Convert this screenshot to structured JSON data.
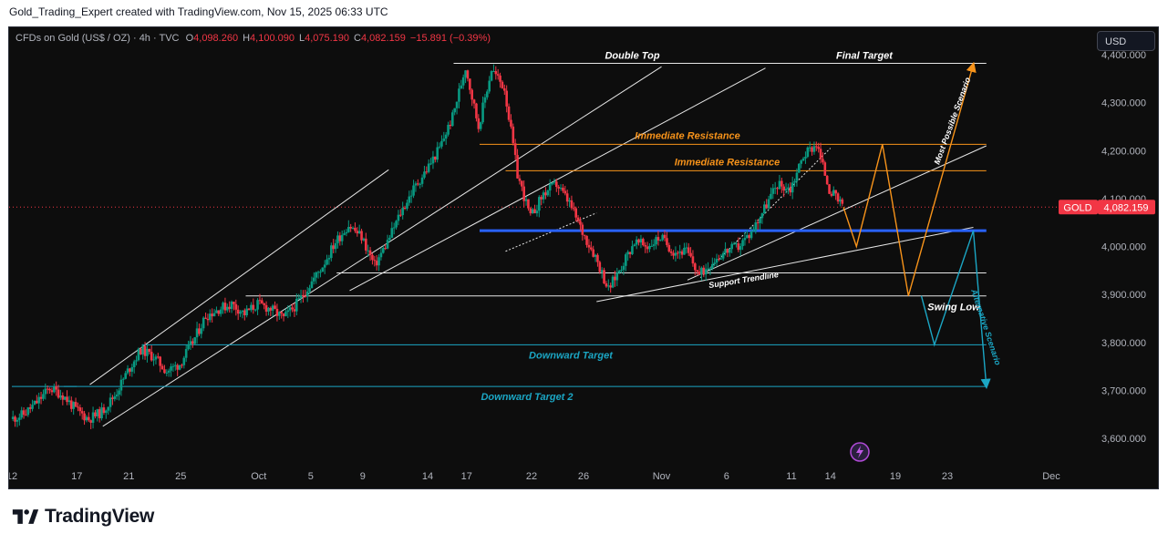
{
  "header": {
    "caption": "Gold_Trading_Expert created with TradingView.com, Nov 15, 2025 06:33 UTC"
  },
  "legend": {
    "symbol": "CFDs on Gold (US$ / OZ) · 4h · TVC",
    "open_label": "O",
    "open": "4,098.260",
    "high_label": "H",
    "high": "4,100.090",
    "low_label": "L",
    "low": "4,075.190",
    "close_label": "C",
    "close": "4,082.159",
    "change": "−15.891 (−0.39%)"
  },
  "currency_button": "USD",
  "price_tag": {
    "symbol": "GOLD",
    "price": "4,082.159"
  },
  "footer": {
    "brand": "TradingView"
  },
  "colors": {
    "up": "#089981",
    "down": "#f23645",
    "orange": "#f7931a",
    "cyan": "#1ba6c4",
    "blue": "#2962ff",
    "background": "#0d0d0d"
  },
  "chart_data": {
    "type": "candlestick",
    "title": "",
    "ylim": [
      3555,
      4405
    ],
    "y_ticks": [
      {
        "value": 3600,
        "label": "3,600.000"
      },
      {
        "value": 3700,
        "label": "3,700.000"
      },
      {
        "value": 3800,
        "label": "3,800.000"
      },
      {
        "value": 3900,
        "label": "3,900.000"
      },
      {
        "value": 4000,
        "label": "4,000.000"
      },
      {
        "value": 4100,
        "label": "4,100.000"
      },
      {
        "value": 4200,
        "label": "4,200.000"
      },
      {
        "value": 4300,
        "label": "4,300.000"
      },
      {
        "value": 4400,
        "label": "4,400.000"
      }
    ],
    "x_ticks": [
      {
        "date": "2025-09-12",
        "label": "12"
      },
      {
        "date": "2025-09-17",
        "label": "17"
      },
      {
        "date": "2025-09-21",
        "label": "21"
      },
      {
        "date": "2025-09-25",
        "label": "25"
      },
      {
        "date": "2025-10-01",
        "label": "Oct"
      },
      {
        "date": "2025-10-05",
        "label": "5"
      },
      {
        "date": "2025-10-09",
        "label": "9"
      },
      {
        "date": "2025-10-14",
        "label": "14"
      },
      {
        "date": "2025-10-17",
        "label": "17"
      },
      {
        "date": "2025-10-22",
        "label": "22"
      },
      {
        "date": "2025-10-26",
        "label": "26"
      },
      {
        "date": "2025-11-01",
        "label": "Nov"
      },
      {
        "date": "2025-11-06",
        "label": "6"
      },
      {
        "date": "2025-11-11",
        "label": "11"
      },
      {
        "date": "2025-11-14",
        "label": "14"
      },
      {
        "date": "2025-11-19",
        "label": "19"
      },
      {
        "date": "2025-11-23",
        "label": "23"
      },
      {
        "date": "2025-12-01",
        "label": "Dec"
      }
    ],
    "last_price": 4082.159,
    "price_path": [
      [
        "2025-09-12",
        3640
      ],
      [
        "2025-09-13",
        3650
      ],
      [
        "2025-09-14",
        3675
      ],
      [
        "2025-09-15",
        3705
      ],
      [
        "2025-09-16",
        3690
      ],
      [
        "2025-09-17",
        3660
      ],
      [
        "2025-09-18",
        3640
      ],
      [
        "2025-09-19",
        3655
      ],
      [
        "2025-09-20",
        3690
      ],
      [
        "2025-09-21",
        3740
      ],
      [
        "2025-09-22",
        3785
      ],
      [
        "2025-09-23",
        3770
      ],
      [
        "2025-09-24",
        3740
      ],
      [
        "2025-09-25",
        3755
      ],
      [
        "2025-09-26",
        3800
      ],
      [
        "2025-09-27",
        3855
      ],
      [
        "2025-09-28",
        3870
      ],
      [
        "2025-09-29",
        3880
      ],
      [
        "2025-09-30",
        3860
      ],
      [
        "2025-10-01",
        3880
      ],
      [
        "2025-10-02",
        3870
      ],
      [
        "2025-10-03",
        3850
      ],
      [
        "2025-10-04",
        3880
      ],
      [
        "2025-10-05",
        3920
      ],
      [
        "2025-10-06",
        3960
      ],
      [
        "2025-10-07",
        4010
      ],
      [
        "2025-10-08",
        4045
      ],
      [
        "2025-10-09",
        4020
      ],
      [
        "2025-10-10",
        3960
      ],
      [
        "2025-10-11",
        4010
      ],
      [
        "2025-10-12",
        4070
      ],
      [
        "2025-10-13",
        4120
      ],
      [
        "2025-10-14",
        4160
      ],
      [
        "2025-10-15",
        4205
      ],
      [
        "2025-10-16",
        4270
      ],
      [
        "2025-10-17",
        4375
      ],
      [
        "2025-10-18",
        4250
      ],
      [
        "2025-10-19",
        4370
      ],
      [
        "2025-10-20",
        4330
      ],
      [
        "2025-10-21",
        4150
      ],
      [
        "2025-10-22",
        4060
      ],
      [
        "2025-10-23",
        4110
      ],
      [
        "2025-10-24",
        4130
      ],
      [
        "2025-10-25",
        4090
      ],
      [
        "2025-10-26",
        4030
      ],
      [
        "2025-10-27",
        3980
      ],
      [
        "2025-10-28",
        3910
      ],
      [
        "2025-10-29",
        3960
      ],
      [
        "2025-10-30",
        4010
      ],
      [
        "2025-10-31",
        4000
      ],
      [
        "2025-11-01",
        4020
      ],
      [
        "2025-11-02",
        3990
      ],
      [
        "2025-11-03",
        3990
      ],
      [
        "2025-11-04",
        3940
      ],
      [
        "2025-11-05",
        3970
      ],
      [
        "2025-11-06",
        3990
      ],
      [
        "2025-11-07",
        4000
      ],
      [
        "2025-11-08",
        4030
      ],
      [
        "2025-11-09",
        4080
      ],
      [
        "2025-11-10",
        4130
      ],
      [
        "2025-11-11",
        4120
      ],
      [
        "2025-11-12",
        4190
      ],
      [
        "2025-11-13",
        4215
      ],
      [
        "2025-11-14",
        4120
      ],
      [
        "2025-11-15",
        4082
      ]
    ],
    "annotations": {
      "double_top": {
        "label": "Double Top",
        "start": "2025-10-16",
        "end": "2025-11-26",
        "value": 4382
      },
      "final_target": {
        "label": "Final Target"
      },
      "immediate_resistance_1": {
        "label": "Immediate Resistance",
        "start": "2025-10-18",
        "end": "2025-11-26",
        "value": 4213
      },
      "immediate_resistance_2": {
        "label": "Immediate Resistance",
        "start": "2025-10-20",
        "end": "2025-11-26",
        "value": 4158
      },
      "blue_level": {
        "start": "2025-10-18",
        "end": "2025-11-26",
        "value": 4033
      },
      "level_3945": {
        "start": "2025-10-07",
        "end": "2025-11-26",
        "value": 3945
      },
      "swing_low_level": {
        "start": "2025-09-30",
        "end": "2025-11-26",
        "value": 3897
      },
      "swing_low": {
        "label": "Swing Low"
      },
      "support_trendline": {
        "label": "Support Trendline",
        "from": [
          "2025-10-27",
          3885
        ],
        "to": [
          "2025-11-25",
          4040
        ]
      },
      "downward_target": {
        "label": "Downward Target",
        "start": "2025-09-22",
        "end": "2025-11-26",
        "value": 3795
      },
      "downward_target_2": {
        "label": "Downward Target 2",
        "start": "2025-09-16",
        "end": "2025-11-26",
        "value": 3708
      },
      "most_possible_scenario": {
        "label": "Most Possible Scenario",
        "path": [
          [
            "2025-11-15",
            4082
          ],
          [
            "2025-11-16",
            4000
          ],
          [
            "2025-11-18",
            4213
          ],
          [
            "2025-11-20",
            3897
          ],
          [
            "2025-11-25",
            4380
          ]
        ]
      },
      "alternative_scenario": {
        "label": "Alternative Scenario",
        "path": [
          [
            "2025-11-21",
            3897
          ],
          [
            "2025-11-22",
            3795
          ],
          [
            "2025-11-25",
            4033
          ],
          [
            "2025-11-26",
            3708
          ]
        ]
      }
    }
  }
}
